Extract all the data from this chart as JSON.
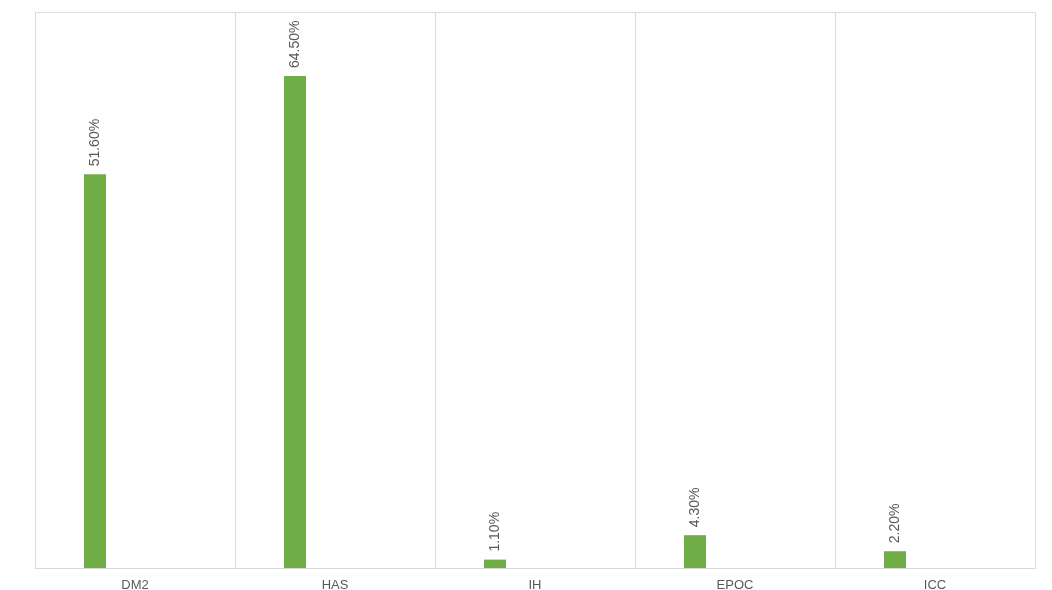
{
  "chart_data": {
    "type": "bar",
    "categories": [
      "DM2",
      "HAS",
      "IH",
      "EPOC",
      "ICC"
    ],
    "values": [
      51.6,
      64.5,
      1.1,
      4.3,
      2.2
    ],
    "value_labels": [
      "51.60%",
      "64.50%",
      "1.10%",
      "4.30%",
      "2.20%"
    ],
    "color": "#70ad47",
    "grid": "x"
  }
}
